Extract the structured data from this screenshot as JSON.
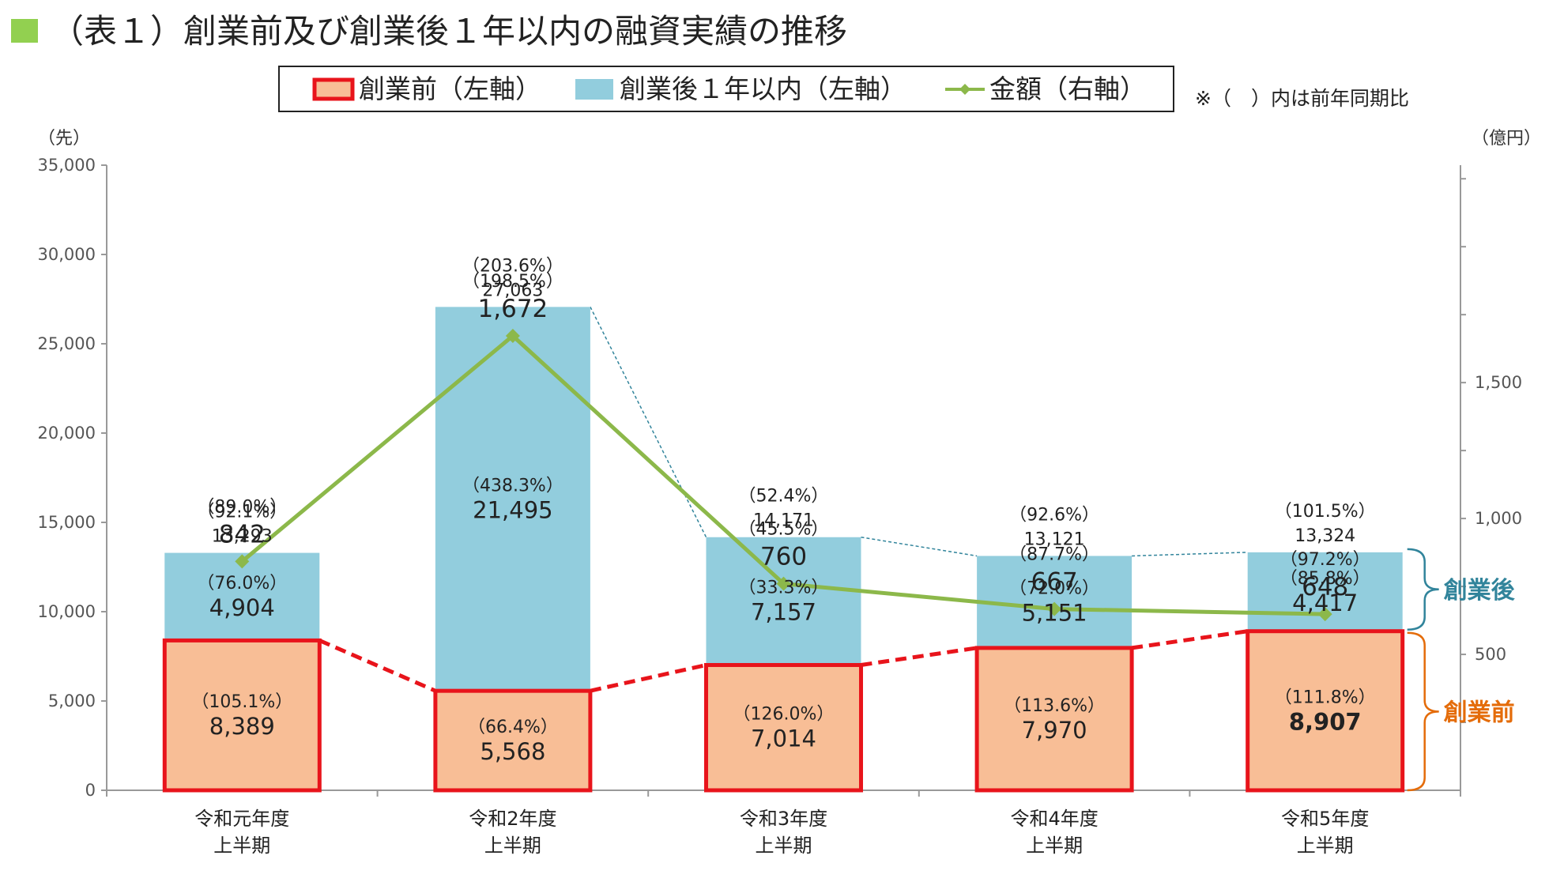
{
  "title": "（表１）創業前及び創業後１年以内の融資実績の推移",
  "note": "※（　）内は前年同期比",
  "chart_data": {
    "type": "bar",
    "stacked": true,
    "categories": [
      [
        "令和元年度",
        "上半期"
      ],
      [
        "令和2年度",
        "上半期"
      ],
      [
        "令和3年度",
        "上半期"
      ],
      [
        "令和4年度",
        "上半期"
      ],
      [
        "令和5年度",
        "上半期"
      ]
    ],
    "left_axis": {
      "unit": "（先）",
      "ylim": [
        0,
        35000
      ],
      "ticks": [
        "0",
        "5,000",
        "10,000",
        "15,000",
        "20,000",
        "25,000",
        "30,000",
        "35,000"
      ]
    },
    "right_axis": {
      "unit": "（億円）",
      "ylim": [
        0,
        2300
      ],
      "ticks": [
        "500",
        "1,000",
        "1,500"
      ]
    },
    "legend": [
      "創業前（左軸）",
      "創業後１年以内（左軸）",
      "金額（右軸）"
    ],
    "series": [
      {
        "name": "創業前（左軸）",
        "axis": "left",
        "values": [
          8389,
          5568,
          7014,
          7970,
          8907
        ],
        "labels": [
          "8,389",
          "5,568",
          "7,014",
          "7,970",
          "8,907"
        ],
        "yoy": [
          "（105.1%）",
          "（66.4%）",
          "（126.0%）",
          "（113.6%）",
          "（111.8%）"
        ]
      },
      {
        "name": "創業後１年以内（左軸）",
        "axis": "left",
        "values": [
          4904,
          21495,
          7157,
          5151,
          4417
        ],
        "labels": [
          "4,904",
          "21,495",
          "7,157",
          "5,151",
          "4,417"
        ],
        "yoy": [
          "（76.0%）",
          "（438.3%）",
          "（33.3%）",
          "（72.0%）",
          "（85.8%）"
        ]
      },
      {
        "name": "金額（右軸）",
        "axis": "right",
        "values": [
          842,
          1672,
          760,
          667,
          648
        ],
        "labels": [
          "842",
          "1,672",
          "760",
          "667",
          "648"
        ],
        "yoy": [
          "（89.0%）",
          "（198.5%）",
          "（45.5%）",
          "（87.7%）",
          "（97.2%）"
        ]
      }
    ],
    "totals": {
      "values": [
        13293,
        27063,
        14171,
        13121,
        13324
      ],
      "labels": [
        "13,293",
        "27,063",
        "14,171",
        "13,121",
        "13,324"
      ],
      "yoy": [
        "（92.1%）",
        "（203.6%）",
        "（52.4%）",
        "（92.6%）",
        "（101.5%）"
      ]
    },
    "brace_labels": {
      "after": "創業後",
      "before": "創業前"
    },
    "colors": {
      "before_fill": "#F8BE96",
      "before_border": "#E8141B",
      "after_fill": "#92CDDD",
      "line": "#8CB84A",
      "title_square": "#92D050",
      "brace_after": "#31849B",
      "brace_before": "#E46C0A",
      "connector_after": "#31849B",
      "connector_before": "#E8141B"
    }
  }
}
